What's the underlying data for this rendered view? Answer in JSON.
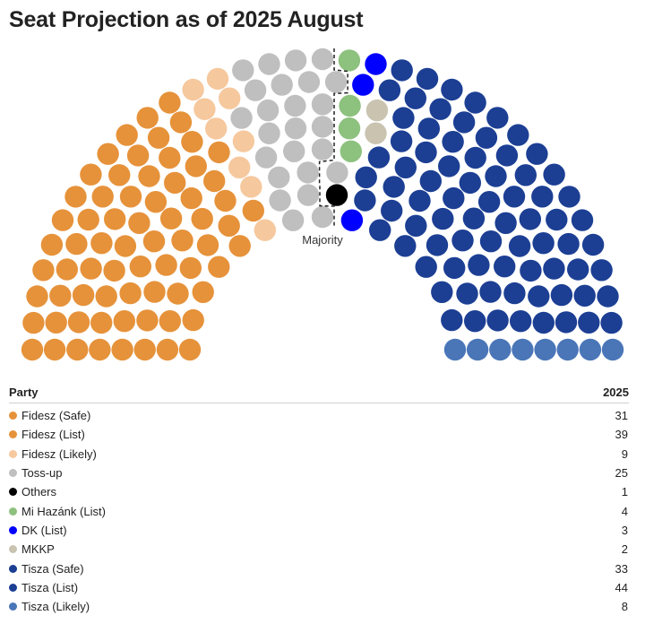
{
  "title": "Seat Projection as of 2025 August",
  "table": {
    "header_party": "Party",
    "header_year": "2025"
  },
  "chart_data": {
    "type": "parliament",
    "title": "Seat Projection as of 2025 August",
    "annotation": "Majority",
    "total_seats": 199,
    "series": [
      {
        "name": "Fidesz (Safe)",
        "seats": 31,
        "color": "#E6923A"
      },
      {
        "name": "Fidesz (List)",
        "seats": 39,
        "color": "#E6923A"
      },
      {
        "name": "Fidesz (Likely)",
        "seats": 9,
        "color": "#F6C89E"
      },
      {
        "name": "Toss-up",
        "seats": 25,
        "color": "#BFBFBF"
      },
      {
        "name": "Others",
        "seats": 1,
        "color": "#000000"
      },
      {
        "name": "Mi Hazánk (List)",
        "seats": 4,
        "color": "#8DC17E"
      },
      {
        "name": "DK (List)",
        "seats": 3,
        "color": "#0000FF"
      },
      {
        "name": "MKKP",
        "seats": 2,
        "color": "#C9C3B0"
      },
      {
        "name": "Tisza (Safe)",
        "seats": 33,
        "color": "#1C3F94"
      },
      {
        "name": "Tisza (List)",
        "seats": 44,
        "color": "#1C3F94"
      },
      {
        "name": "Tisza (Likely)",
        "seats": 8,
        "color": "#4A76B8"
      }
    ]
  }
}
